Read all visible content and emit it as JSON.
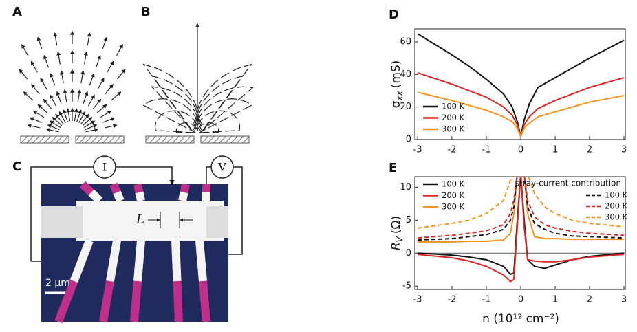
{
  "panels": {
    "labels": [
      "A",
      "B",
      "C",
      "D",
      "E"
    ],
    "circuit": {
      "current": "I",
      "voltage": "V",
      "length": "L",
      "scale_bar": "2 µm"
    }
  },
  "chart_data": [
    {
      "type": "line",
      "ylabel": {
        "symbol": "σ",
        "subscript": "xx",
        "unit": "(mS)"
      },
      "xlim": [
        -3,
        3
      ],
      "xticks": [
        -3,
        -2,
        -1,
        0,
        1,
        2,
        3
      ],
      "ylim": [
        0,
        68
      ],
      "yticks": [
        0,
        20,
        40,
        60
      ],
      "legend": "lower left",
      "x": [
        -3,
        -2.5,
        -2,
        -1.5,
        -1,
        -0.5,
        -0.25,
        -0.1,
        0,
        0.1,
        0.25,
        0.5,
        1,
        1.5,
        2,
        2.5,
        3
      ],
      "series": [
        {
          "name": "100 K",
          "color": "#111111",
          "values": [
            65,
            58.5,
            52,
            45,
            37,
            28,
            20,
            11,
            2,
            12,
            22,
            32,
            38,
            44,
            50,
            55.5,
            61
          ]
        },
        {
          "name": "200 K",
          "color": "#e02424",
          "values": [
            41,
            37.5,
            34,
            30,
            26,
            20,
            15,
            9,
            2,
            9,
            14,
            19,
            24,
            28,
            32,
            35,
            38
          ]
        },
        {
          "name": "300 K",
          "color": "#f7941d",
          "values": [
            29,
            26.5,
            24,
            21,
            18,
            14,
            11,
            7,
            2,
            7,
            10,
            14,
            17,
            20,
            23,
            25,
            27
          ]
        }
      ]
    },
    {
      "type": "line",
      "ylabel": {
        "symbol": "R",
        "subscript": "V",
        "unit": "(Ω)"
      },
      "xlabel": "n (10¹² cm⁻²)",
      "xlim": [
        -3,
        3
      ],
      "xticks": [
        -3,
        -2,
        -1,
        0,
        1,
        2,
        3
      ],
      "ylim": [
        -5.5,
        11.6
      ],
      "yticks": [
        -5,
        0,
        5,
        10
      ],
      "reference_line": 0,
      "legend": "upper left",
      "dashed_legend_title": "stray-current contribution",
      "x": [
        -3,
        -2,
        -1.5,
        -1,
        -0.5,
        -0.3,
        -0.2,
        -0.1,
        0,
        0.1,
        0.2,
        0.4,
        0.7,
        1,
        1.5,
        2,
        3
      ],
      "series": [
        {
          "name": "100 K",
          "color": "#111111",
          "dashed": false,
          "values": [
            0,
            -0.3,
            -0.6,
            -1,
            -2,
            -3.2,
            -3,
            5,
            12,
            5,
            -1,
            -2,
            -2.3,
            -1.8,
            -1,
            -0.5,
            0
          ]
        },
        {
          "name": "200 K",
          "color": "#e02424",
          "dashed": false,
          "values": [
            -0.2,
            -0.7,
            -1.2,
            -2,
            -3.3,
            -4.3,
            -4,
            4,
            12,
            4,
            -1,
            -1.2,
            -1.3,
            -1.3,
            -1,
            -0.6,
            -0.2
          ]
        },
        {
          "name": "300 K",
          "color": "#f7941d",
          "dashed": false,
          "values": [
            1.7,
            1.7,
            1.8,
            1.8,
            2,
            3,
            6,
            12,
            12,
            12,
            6,
            2.5,
            2.2,
            2.2,
            2.1,
            2.1,
            2.1
          ]
        },
        {
          "name": "100 K",
          "color": "#111111",
          "dashed": true,
          "values": [
            2,
            2.2,
            2.5,
            2.8,
            3.6,
            5,
            7,
            12,
            12,
            12,
            7,
            4.5,
            3.6,
            3,
            2.6,
            2.5,
            2.3
          ]
        },
        {
          "name": "200 K",
          "color": "#e02424",
          "dashed": true,
          "values": [
            2.3,
            2.7,
            3,
            3.4,
            4.3,
            6,
            8,
            12,
            12,
            12,
            8,
            5.5,
            4.3,
            3.8,
            3.3,
            3,
            2.7
          ]
        },
        {
          "name": "300 K",
          "color": "#f7941d",
          "dashed": true,
          "values": [
            3.8,
            4.5,
            5,
            6,
            8,
            11,
            12,
            12,
            12,
            12,
            12,
            9,
            7,
            6,
            5,
            4.5,
            4
          ]
        }
      ]
    }
  ]
}
